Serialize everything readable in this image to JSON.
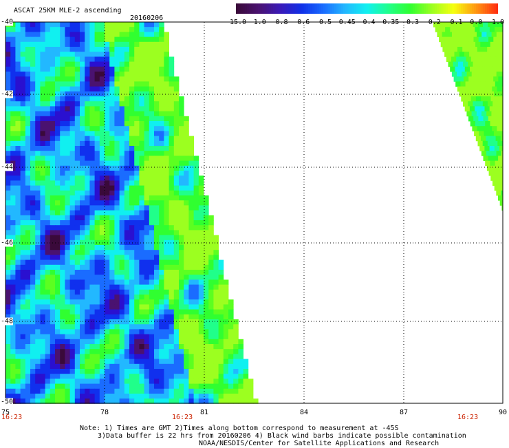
{
  "header": {
    "title": "ASCAT 25KM MLE-2 ascending",
    "date": "20160206"
  },
  "colorbar": {
    "labels": [
      "-15.0",
      "-1.0",
      "-0.8",
      "-0.6",
      "-0.5",
      "-0.45",
      "-0.4",
      "-0.35",
      "-0.3",
      "-0.2",
      "-0.1",
      "0.0",
      "1.0"
    ],
    "colors": [
      "#3a0a3a",
      "#4a1270",
      "#3a1ab8",
      "#1030e8",
      "#1a6cff",
      "#22b8ff",
      "#10f0f0",
      "#20ff8a",
      "#30ff30",
      "#9cff20",
      "#f6ff10",
      "#ff9a10",
      "#ff3010"
    ]
  },
  "axes": {
    "x_ticks": [
      "75",
      "78",
      "81",
      "84",
      "87",
      "90"
    ],
    "y_ticks": [
      "-40",
      "-42",
      "-44",
      "-46",
      "-48",
      "-50"
    ],
    "lon_range": [
      75,
      90
    ],
    "lat_range": [
      -40,
      -50
    ],
    "time_labels": [
      "16:23",
      "16:23",
      "16:23"
    ]
  },
  "notes": {
    "line1": "Note: 1) Times are GMT 2)Times along bottom correspond to measurement at -45S",
    "line2": "3)Data buffer is 22 hrs from 20160206 4) Black wind barbs indicate possible contamination",
    "line3": "NOAA/NESDIS/Center for Satellite Applications and Research"
  }
}
